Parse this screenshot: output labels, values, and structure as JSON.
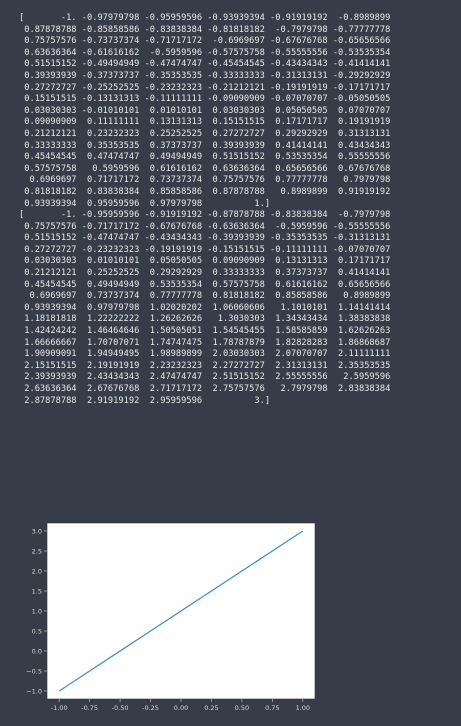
{
  "output": {
    "array1": [
      "-1.",
      "-0.97979798",
      "-0.95959596",
      "-0.93939394",
      "-0.91919192",
      "-0.8989899",
      "-0.87878788",
      "-0.85858586",
      "-0.83838384",
      "-0.81818182",
      "-0.7979798",
      "-0.77777778",
      "-0.75757576",
      "-0.73737374",
      "-0.71717172",
      "-0.6969697",
      "-0.67676768",
      "-0.65656566",
      "-0.63636364",
      "-0.61616162",
      "-0.5959596",
      "-0.57575758",
      "-0.55555556",
      "-0.53535354",
      "-0.51515152",
      "-0.49494949",
      "-0.47474747",
      "-0.45454545",
      "-0.43434343",
      "-0.41414141",
      "-0.39393939",
      "-0.37373737",
      "-0.35353535",
      "-0.33333333",
      "-0.31313131",
      "-0.29292929",
      "-0.27272727",
      "-0.25252525",
      "-0.23232323",
      "-0.21212121",
      "-0.19191919",
      "-0.17171717",
      "-0.15151515",
      "-0.13131313",
      "-0.11111111",
      "-0.09090909",
      "-0.07070707",
      "-0.05050505",
      "-0.03030303",
      "-0.01010101",
      "0.01010101",
      "0.03030303",
      "0.05050505",
      "0.07070707",
      "0.09090909",
      "0.11111111",
      "0.13131313",
      "0.15151515",
      "0.17171717",
      "0.19191919",
      "0.21212121",
      "0.23232323",
      "0.25252525",
      "0.27272727",
      "0.29292929",
      "0.31313131",
      "0.33333333",
      "0.35353535",
      "0.37373737",
      "0.39393939",
      "0.41414141",
      "0.43434343",
      "0.45454545",
      "0.47474747",
      "0.49494949",
      "0.51515152",
      "0.53535354",
      "0.55555556",
      "0.57575758",
      "0.5959596",
      "0.61616162",
      "0.63636364",
      "0.65656566",
      "0.67676768",
      "0.6969697",
      "0.71717172",
      "0.73737374",
      "0.75757576",
      "0.77777778",
      "0.7979798",
      "0.81818182",
      "0.83838384",
      "0.85858586",
      "0.87878788",
      "0.8989899",
      "0.91919192",
      "0.93939394",
      "0.95959596",
      "0.97979798",
      "1."
    ],
    "array2": [
      "-1.",
      "-0.95959596",
      "-0.91919192",
      "-0.87878788",
      "-0.83838384",
      "-0.7979798",
      "-0.75757576",
      "-0.71717172",
      "-0.67676768",
      "-0.63636364",
      "-0.5959596",
      "-0.55555556",
      "-0.51515152",
      "-0.47474747",
      "-0.43434343",
      "-0.39393939",
      "-0.35353535",
      "-0.31313131",
      "-0.27272727",
      "-0.23232323",
      "-0.19191919",
      "-0.15151515",
      "-0.11111111",
      "-0.07070707",
      "-0.03030303",
      "0.01010101",
      "0.05050505",
      "0.09090909",
      "0.13131313",
      "0.17171717",
      "0.21212121",
      "0.25252525",
      "0.29292929",
      "0.33333333",
      "0.37373737",
      "0.41414141",
      "0.45454545",
      "0.49494949",
      "0.53535354",
      "0.57575758",
      "0.61616162",
      "0.65656566",
      "0.6969697",
      "0.73737374",
      "0.77777778",
      "0.81818182",
      "0.85858586",
      "0.8989899",
      "0.93939394",
      "0.97979798",
      "1.02020202",
      "1.06060606",
      "1.1010101",
      "1.14141414",
      "1.18181818",
      "1.22222222",
      "1.26262626",
      "1.3030303",
      "1.34343434",
      "1.38383838",
      "1.42424242",
      "1.46464646",
      "1.50505051",
      "1.54545455",
      "1.58585859",
      "1.62626263",
      "1.66666667",
      "1.70707071",
      "1.74747475",
      "1.78787879",
      "1.82828283",
      "1.86868687",
      "1.90909091",
      "1.94949495",
      "1.98989899",
      "2.03030303",
      "2.07070707",
      "2.11111111",
      "2.15151515",
      "2.19191919",
      "2.23232323",
      "2.27272727",
      "2.31313131",
      "2.35353535",
      "2.39393939",
      "2.43434343",
      "2.47474747",
      "2.51515152",
      "2.55555556",
      "2.5959596",
      "2.63636364",
      "2.67676768",
      "2.71717172",
      "2.75757576",
      "2.7979798",
      "2.83838384",
      "2.87878788",
      "2.91919192",
      "2.95959596",
      "3."
    ]
  },
  "chart_data": {
    "type": "line",
    "x": [
      -1.0,
      1.0
    ],
    "y": [
      -1.0,
      3.0
    ],
    "xlim": [
      -1.1,
      1.1
    ],
    "ylim": [
      -1.2,
      3.2
    ],
    "xticks": [
      "-1.00",
      "-0.75",
      "-0.50",
      "-0.25",
      "0.00",
      "0.25",
      "0.50",
      "0.75",
      "1.00"
    ],
    "yticks": [
      "−1.0",
      "−0.5",
      "0.0",
      "0.5",
      "1.0",
      "1.5",
      "2.0",
      "2.5",
      "3.0"
    ],
    "line_color": "#4a90c8",
    "grid": false,
    "title": "",
    "xlabel": "",
    "ylabel": ""
  }
}
